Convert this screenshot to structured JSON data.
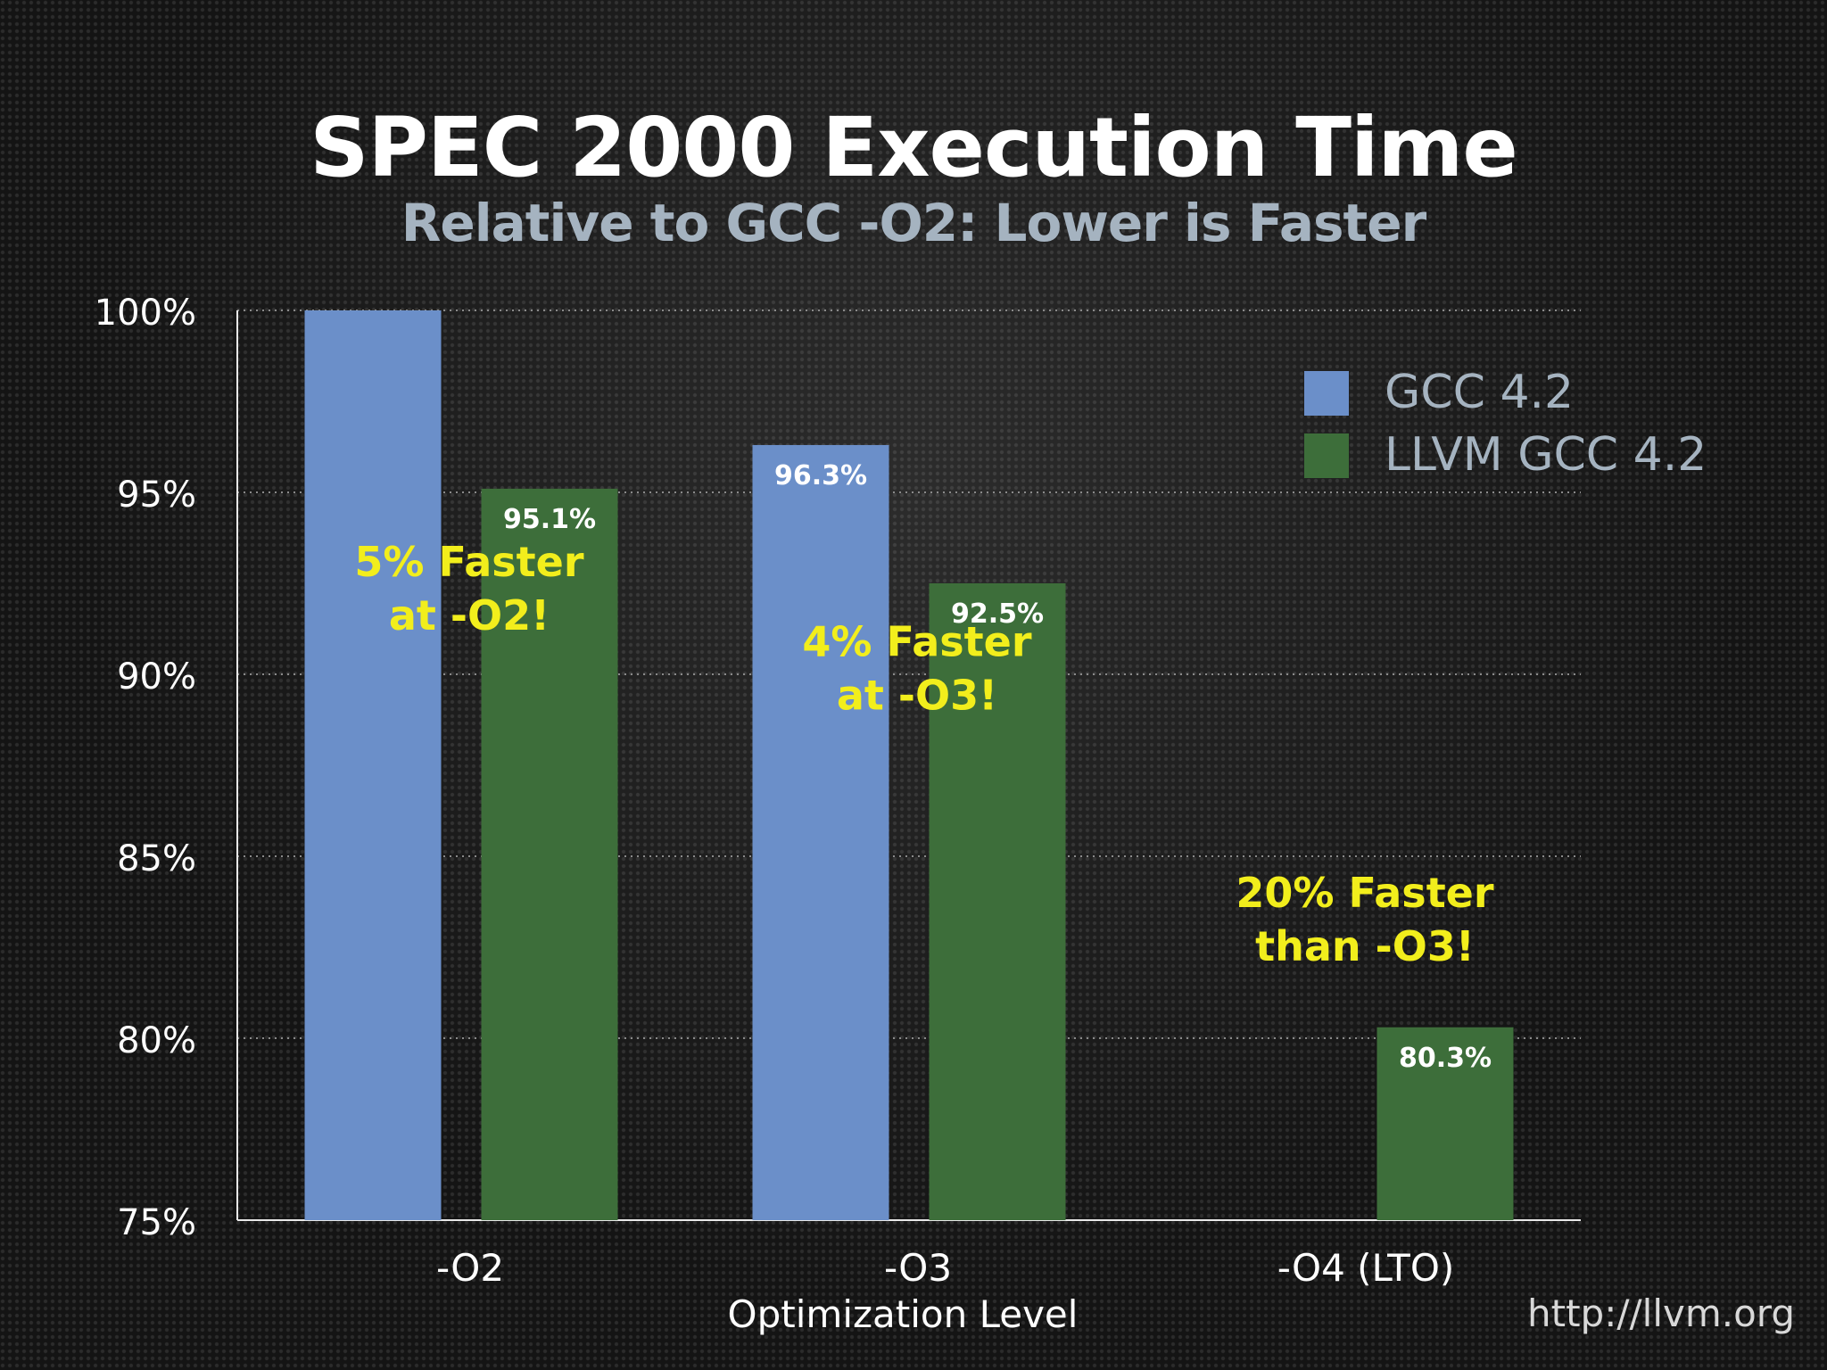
{
  "chart_data": {
    "type": "bar",
    "title": "SPEC 2000 Execution Time",
    "subtitle": "Relative to GCC -O2: Lower is Faster",
    "xlabel": "Optimization Level",
    "ylabel": "",
    "categories": [
      "-O2",
      "-O3",
      "-O4 (LTO)"
    ],
    "series": [
      {
        "name": "GCC 4.2",
        "color": "#6b8fc9",
        "values": [
          100,
          96.3,
          null
        ],
        "labels": [
          "",
          "96.3%",
          ""
        ]
      },
      {
        "name": "LLVM GCC 4.2",
        "color": "#3d6e3a",
        "values": [
          95.1,
          92.5,
          80.3
        ],
        "labels": [
          "95.1%",
          "92.5%",
          "80.3%"
        ]
      }
    ],
    "ylim": [
      75,
      100
    ],
    "yticks": [
      75,
      80,
      85,
      90,
      95,
      100
    ],
    "ytick_labels": [
      "75%",
      "80%",
      "85%",
      "90%",
      "95%",
      "100%"
    ],
    "grid": true,
    "legend": "top-right",
    "annotations": [
      {
        "category": "-O2",
        "lines": [
          "5% Faster",
          "at -O2!"
        ],
        "y": 92.7
      },
      {
        "category": "-O3",
        "lines": [
          "4% Faster",
          "at -O3!"
        ],
        "y": 90.5
      },
      {
        "category": "-O4 (LTO)",
        "lines": [
          "20% Faster",
          "than -O3!"
        ],
        "y": 83.6
      }
    ]
  },
  "footer": {
    "url": "http://llvm.org"
  }
}
